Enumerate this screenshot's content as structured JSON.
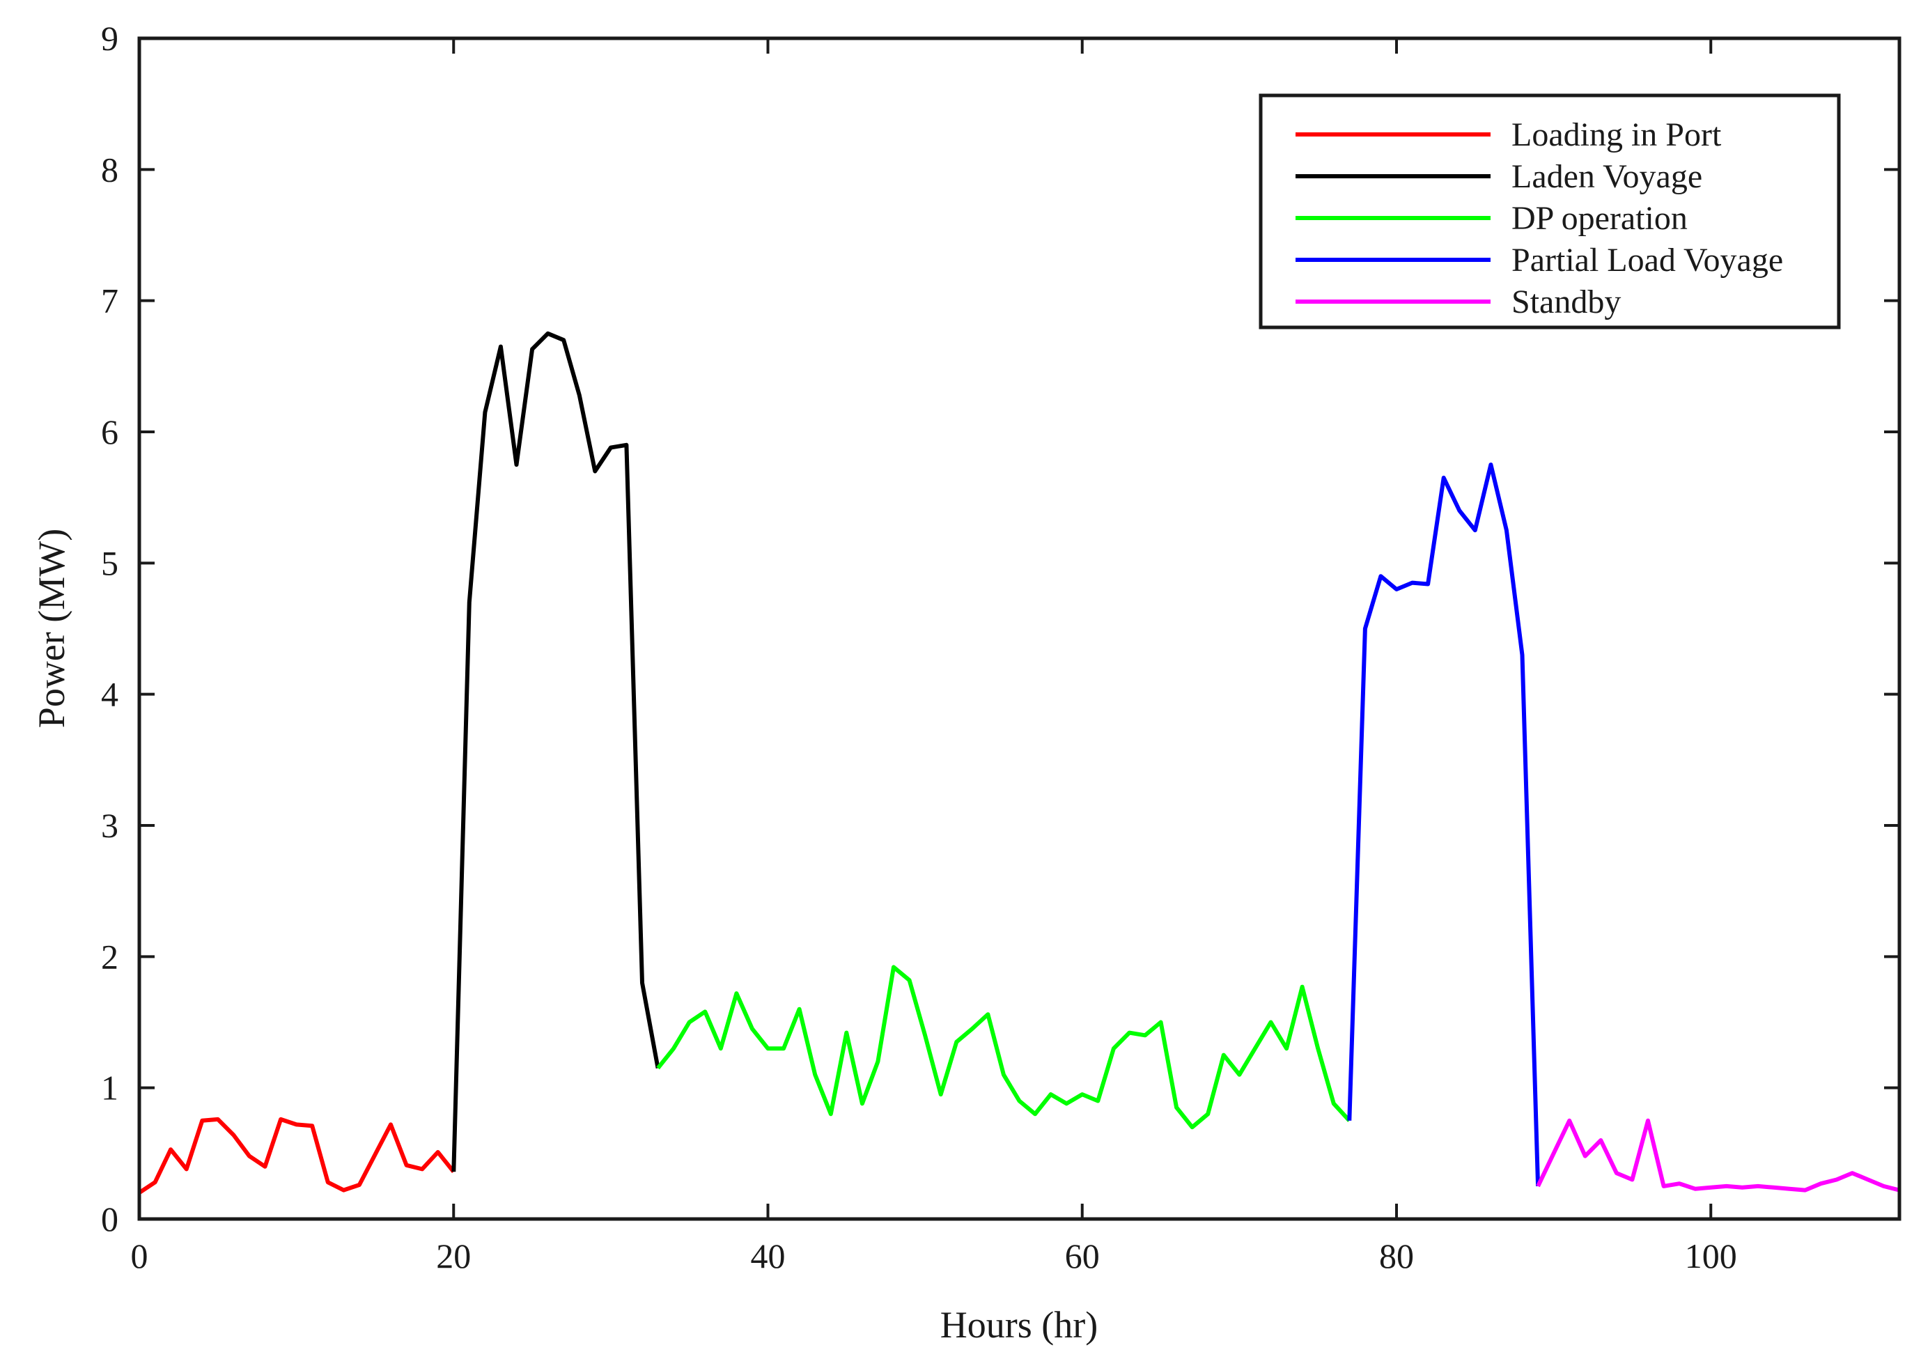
{
  "chart_data": {
    "type": "line",
    "title": "",
    "xlabel": "Hours (hr)",
    "ylabel": "Power (MW)",
    "xlim": [
      0,
      112
    ],
    "ylim": [
      0,
      9
    ],
    "xticks": [
      0,
      20,
      40,
      60,
      80,
      100
    ],
    "yticks": [
      0,
      1,
      2,
      3,
      4,
      5,
      6,
      7,
      8,
      9
    ],
    "grid": false,
    "legend_position": "top-right",
    "series": [
      {
        "name": "Loading in Port",
        "color": "#ff0000",
        "x": [
          0,
          1,
          2,
          3,
          4,
          5,
          6,
          7,
          8,
          9,
          10,
          11,
          12,
          13,
          14,
          15,
          16,
          17,
          18,
          19,
          20
        ],
        "y": [
          0.2,
          0.28,
          0.53,
          0.38,
          0.75,
          0.76,
          0.64,
          0.48,
          0.4,
          0.76,
          0.72,
          0.71,
          0.28,
          0.22,
          0.26,
          0.49,
          0.72,
          0.41,
          0.38,
          0.51,
          0.36
        ]
      },
      {
        "name": "Laden Voyage",
        "color": "#000000",
        "x": [
          20,
          21,
          22,
          23,
          24,
          25,
          26,
          27,
          28,
          29,
          30,
          31,
          32,
          33
        ],
        "y": [
          0.36,
          4.7,
          6.15,
          6.65,
          5.75,
          6.63,
          6.75,
          6.7,
          6.28,
          5.7,
          5.88,
          5.9,
          1.8,
          1.15
        ]
      },
      {
        "name": "DP operation",
        "color": "#00ff00",
        "x": [
          33,
          34,
          35,
          36,
          37,
          38,
          39,
          40,
          41,
          42,
          43,
          44,
          45,
          46,
          47,
          48,
          49,
          50,
          51,
          52,
          53,
          54,
          55,
          56,
          57,
          58,
          59,
          60,
          61,
          62,
          63,
          64,
          65,
          66,
          67,
          68,
          69,
          70,
          71,
          72,
          73,
          74,
          75,
          76,
          77
        ],
        "y": [
          1.15,
          1.3,
          1.5,
          1.58,
          1.3,
          1.72,
          1.45,
          1.3,
          1.3,
          1.6,
          1.1,
          0.8,
          1.42,
          0.88,
          1.2,
          1.92,
          1.82,
          1.4,
          0.95,
          1.35,
          1.45,
          1.56,
          1.1,
          0.9,
          0.8,
          0.95,
          0.88,
          0.95,
          0.9,
          1.3,
          1.42,
          1.4,
          1.5,
          0.85,
          0.7,
          0.8,
          1.25,
          1.1,
          1.3,
          1.5,
          1.3,
          1.77,
          1.3,
          0.88,
          0.75
        ]
      },
      {
        "name": "Partial Load Voyage",
        "color": "#0000ff",
        "x": [
          77,
          78,
          79,
          80,
          81,
          82,
          83,
          84,
          85,
          86,
          87,
          88,
          89
        ],
        "y": [
          0.75,
          4.5,
          4.9,
          4.8,
          4.85,
          4.84,
          5.65,
          5.4,
          5.25,
          5.75,
          5.25,
          4.3,
          0.25
        ]
      },
      {
        "name": "Standby",
        "color": "#ff00ff",
        "x": [
          89,
          90,
          91,
          92,
          93,
          94,
          95,
          96,
          97,
          98,
          99,
          100,
          101,
          102,
          103,
          104,
          105,
          106,
          107,
          108,
          109,
          110,
          111,
          112
        ],
        "y": [
          0.25,
          0.5,
          0.75,
          0.48,
          0.6,
          0.35,
          0.3,
          0.75,
          0.25,
          0.27,
          0.23,
          0.24,
          0.25,
          0.24,
          0.25,
          0.24,
          0.23,
          0.22,
          0.27,
          0.3,
          0.35,
          0.3,
          0.25,
          0.22
        ]
      }
    ]
  }
}
